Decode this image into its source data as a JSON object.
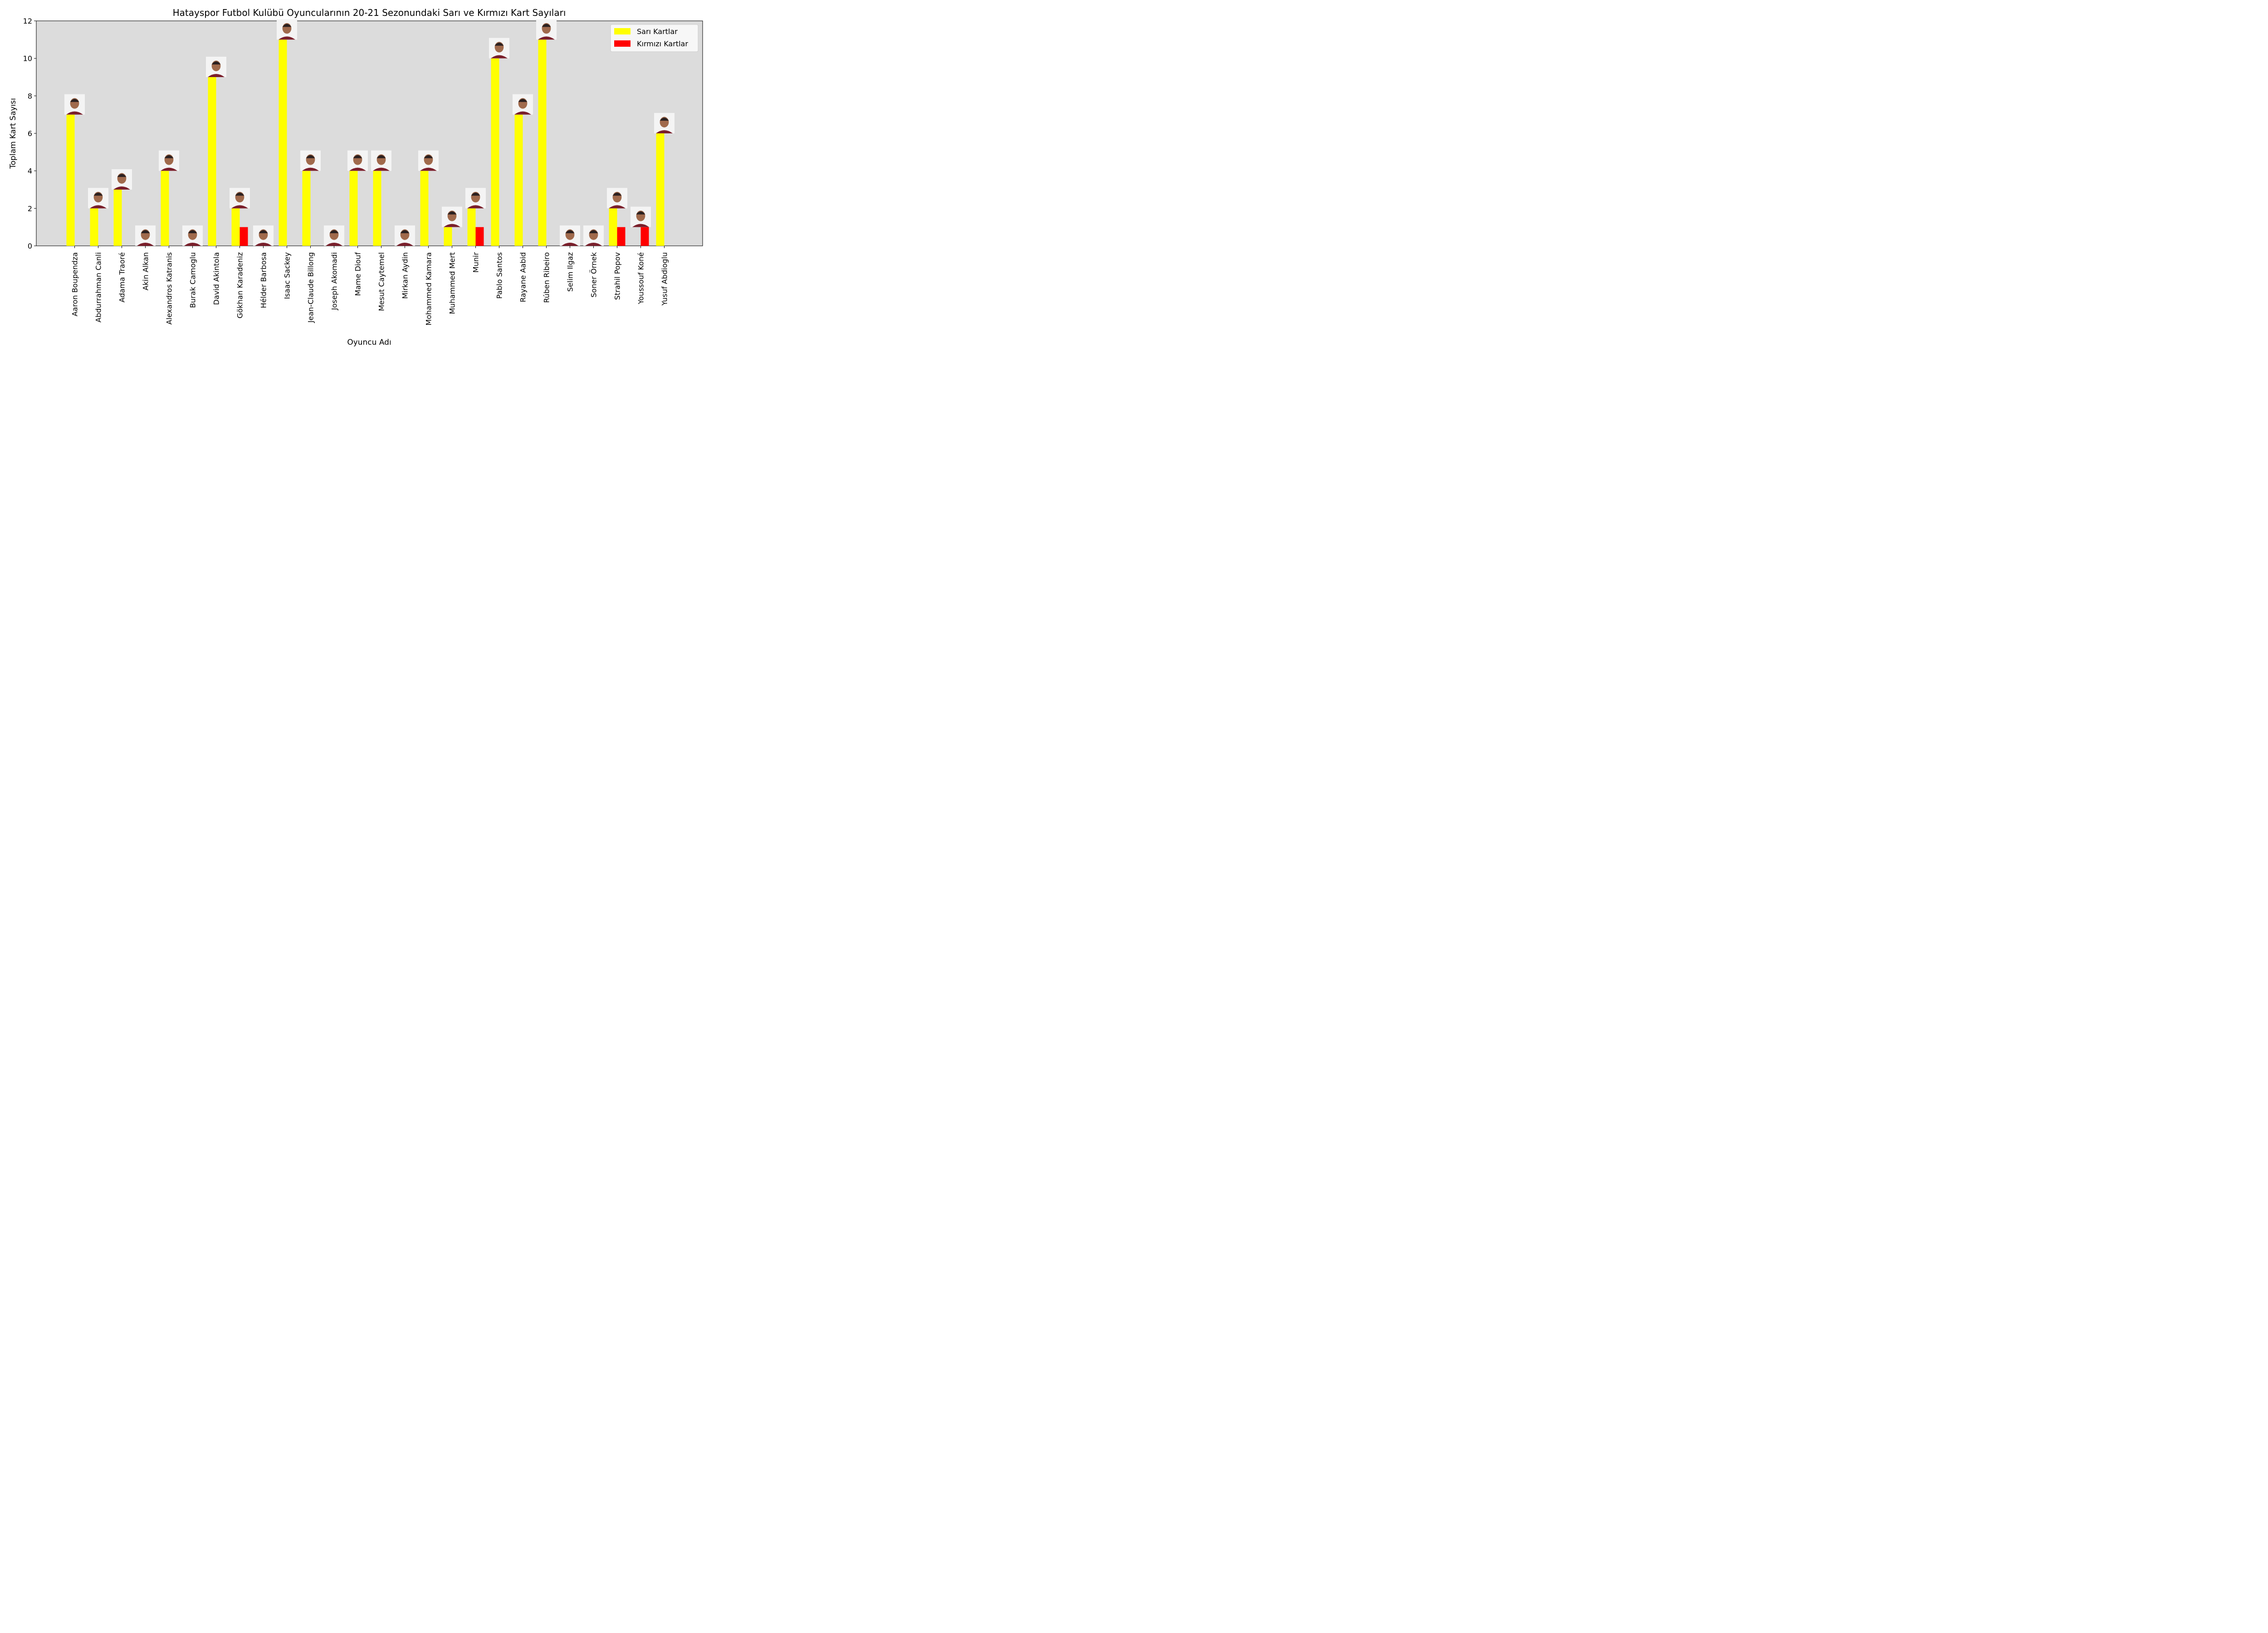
{
  "chart_data": {
    "type": "bar",
    "title": "Hatayspor Futbol Kulübü Oyuncularının 20-21 Sezonundaki Sarı ve Kırmızı Kart Sayıları",
    "xlabel": "Oyuncu Adı",
    "ylabel": "Toplam Kart Sayısı",
    "ylim": [
      0,
      12
    ],
    "yticks": [
      0,
      2,
      4,
      6,
      8,
      10,
      12
    ],
    "grid": false,
    "legend_position": "top-right",
    "categories": [
      "Aaron Boupendza",
      "Abdurrahman Canli",
      "Adama Traoré",
      "Akin Alkan",
      "Alexandros Katranis",
      "Burak Camoglu",
      "David Akintola",
      "Gökhan Karadeniz",
      "Hélder Barbosa",
      "Isaac Sackey",
      "Jean-Claude Billong",
      "Joseph Akomadi",
      "Mame Diouf",
      "Mesut Caytemel",
      "Mirkan Aydin",
      "Mohammed Kamara",
      "Muhammed Mert",
      "Munir",
      "Pablo Santos",
      "Rayane Aabid",
      "Rúben Ribeiro",
      "Selim Ilgaz",
      "Soner Örnek",
      "Strahil Popov",
      "Youssouf Koné",
      "Yusuf Abdioglu"
    ],
    "series": [
      {
        "name": "Sarı Kartlar",
        "color": "#ffff00",
        "values": [
          7,
          2,
          3,
          0,
          4,
          0,
          9,
          2,
          0,
          11,
          4,
          0,
          4,
          4,
          0,
          4,
          1,
          2,
          10,
          7,
          11,
          0,
          0,
          2,
          0,
          6
        ]
      },
      {
        "name": "Kırmızı Kartlar",
        "color": "#ff0000",
        "values": [
          0,
          0,
          0,
          0,
          0,
          0,
          0,
          1,
          0,
          0,
          0,
          0,
          0,
          0,
          0,
          0,
          0,
          1,
          0,
          0,
          0,
          0,
          0,
          1,
          1,
          0
        ]
      }
    ],
    "plot_background": "#dcdcdc",
    "player_photo_icon": "player-photo-icon"
  }
}
